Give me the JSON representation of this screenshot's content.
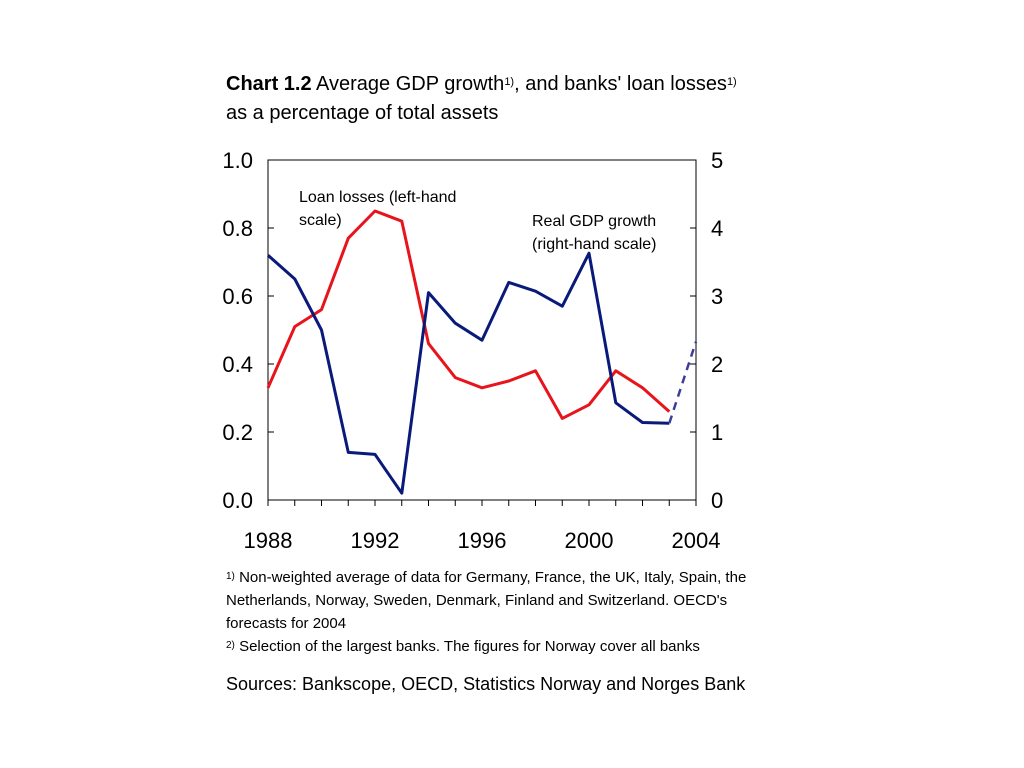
{
  "title": {
    "label": "Chart 1.2",
    "part1": "Average GDP growth",
    "fn1": "1)",
    "part2": ", and banks' loan losses",
    "fn2": "1)",
    "part3": " as a percentage of total assets"
  },
  "chart_data": {
    "type": "line",
    "x_ticks": [
      "1988",
      "1992",
      "1996",
      "2000",
      "2004"
    ],
    "xlim": [
      1988,
      2004
    ],
    "left_axis": {
      "ylim": [
        0,
        1
      ],
      "ticks": [
        "0.0",
        "0.2",
        "0.4",
        "0.6",
        "0.8",
        "1.0"
      ]
    },
    "right_axis": {
      "ylim": [
        0,
        5
      ],
      "ticks": [
        "0",
        "1",
        "2",
        "3",
        "4",
        "5"
      ]
    },
    "grid": false,
    "series": [
      {
        "name": "Loan losses",
        "axis": "left",
        "color": "#e8141b",
        "label_lines": [
          "Loan losses (left-hand",
          "scale)"
        ],
        "x": [
          1988,
          1989,
          1990,
          1991,
          1992,
          1993,
          1994,
          1995,
          1996,
          1997,
          1998,
          1999,
          2000,
          2001,
          2002,
          2003
        ],
        "y": [
          0.33,
          0.51,
          0.56,
          0.77,
          0.85,
          0.82,
          0.46,
          0.36,
          0.33,
          0.35,
          0.38,
          0.24,
          0.28,
          0.38,
          0.33,
          0.26
        ]
      },
      {
        "name": "Real GDP growth",
        "axis": "right",
        "color": "#0a1a7a",
        "label_lines": [
          "Real GDP growth",
          "(right-hand scale)"
        ],
        "x": [
          1988,
          1989,
          1990,
          1991,
          1992,
          1993,
          1994,
          1995,
          1996,
          1997,
          1998,
          1999,
          2000,
          2001,
          2002,
          2003
        ],
        "y": [
          3.6,
          3.25,
          2.5,
          0.7,
          0.67,
          0.1,
          3.05,
          2.6,
          2.35,
          3.2,
          3.07,
          2.85,
          3.63,
          1.43,
          1.14,
          1.13
        ],
        "forecast": {
          "x": [
            2003,
            2004
          ],
          "y": [
            1.13,
            2.33
          ]
        }
      }
    ]
  },
  "notes": [
    {
      "marker": "1)",
      "text": "Non-weighted average of data for Germany, France, the UK, Italy, Spain, the Netherlands, Norway, Sweden, Denmark, Finland and Switzerland. OECD's forecasts for 2004"
    },
    {
      "marker": "2)",
      "text": "Selection of the largest banks.  The figures for Norway cover all banks"
    }
  ],
  "sources": "Sources: Bankscope, OECD, Statistics Norway and Norges Bank"
}
